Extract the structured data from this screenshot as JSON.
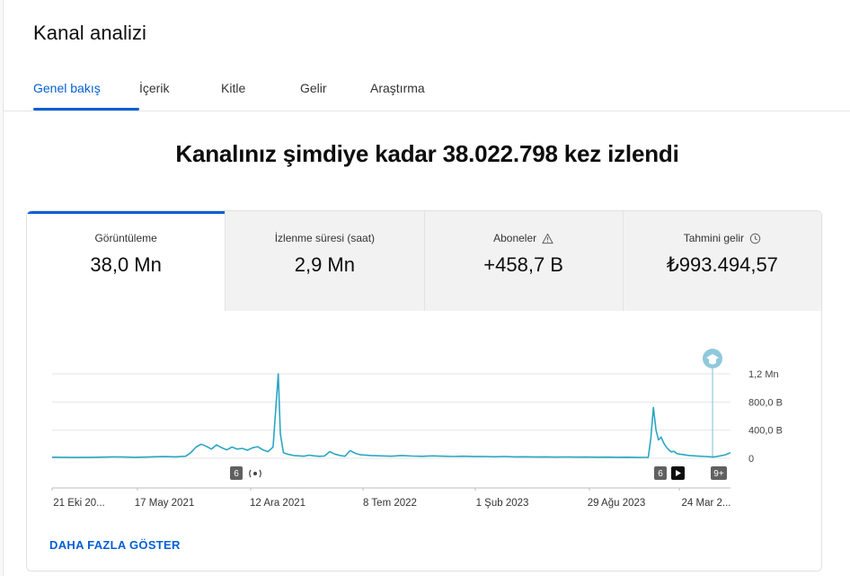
{
  "header": {
    "title": "Kanal analizi",
    "tabs": [
      {
        "label": "Genel bakış",
        "active": true
      },
      {
        "label": "İçerik",
        "active": false
      },
      {
        "label": "Kitle",
        "active": false
      },
      {
        "label": "Gelir",
        "active": false
      },
      {
        "label": "Araştırma",
        "active": false
      }
    ]
  },
  "main": {
    "headline": "Kanalınız şimdiye kadar 38.022.798 kez izlendi",
    "metrics": [
      {
        "label": "Görüntüleme",
        "value": "38,0 Mn",
        "icon": ""
      },
      {
        "label": "İzlenme süresi (saat)",
        "value": "2,9 Mn",
        "icon": ""
      },
      {
        "label": "Aboneler",
        "value": "+458,7 B",
        "icon": "warning-icon"
      },
      {
        "label": "Tahmini gelir",
        "value": "₺993.494,57",
        "icon": "clock-icon"
      }
    ],
    "show_more": "DAHA FAZLA GÖSTER"
  },
  "colors": {
    "accent": "#065fd4",
    "line": "#2aa6c4",
    "marker_bg": "#606060",
    "milestone": "#8fc9dc"
  },
  "chart_data": {
    "type": "line",
    "x_tick_labels": [
      "21 Eki 20...",
      "17 May 2021",
      "12 Ara 2021",
      "8 Tem 2022",
      "1 Şub 2023",
      "29 Ağu 2023",
      "24 Mar 2..."
    ],
    "y_tick_labels": [
      "1,2 Mn",
      "800,0 B",
      "400,0 B",
      "0"
    ],
    "ylim": [
      0,
      1200000
    ],
    "series": [
      {
        "points": [
          [
            0,
            15000
          ],
          [
            4,
            12000
          ],
          [
            8,
            14000
          ],
          [
            10,
            16000
          ],
          [
            12,
            20000
          ],
          [
            14,
            18000
          ],
          [
            16,
            14000
          ],
          [
            18,
            17000
          ],
          [
            20,
            22000
          ],
          [
            22,
            24000
          ],
          [
            24,
            20000
          ],
          [
            26,
            30000
          ],
          [
            27,
            80000
          ],
          [
            28,
            160000
          ],
          [
            29,
            200000
          ],
          [
            30,
            170000
          ],
          [
            31,
            130000
          ],
          [
            32,
            190000
          ],
          [
            33,
            150000
          ],
          [
            34,
            120000
          ],
          [
            35,
            160000
          ],
          [
            36,
            130000
          ],
          [
            37,
            140000
          ],
          [
            38,
            115000
          ],
          [
            39,
            150000
          ],
          [
            40,
            165000
          ],
          [
            41,
            120000
          ],
          [
            42,
            95000
          ],
          [
            43,
            160000
          ],
          [
            44,
            1200000
          ],
          [
            44.4,
            350000
          ],
          [
            45,
            80000
          ],
          [
            46,
            55000
          ],
          [
            47,
            40000
          ],
          [
            48,
            35000
          ],
          [
            49,
            30000
          ],
          [
            50,
            45000
          ],
          [
            51,
            35000
          ],
          [
            52,
            28000
          ],
          [
            53,
            32000
          ],
          [
            54,
            95000
          ],
          [
            55,
            60000
          ],
          [
            56,
            40000
          ],
          [
            57,
            30000
          ],
          [
            58,
            110000
          ],
          [
            59,
            70000
          ],
          [
            60,
            50000
          ],
          [
            62,
            40000
          ],
          [
            64,
            35000
          ],
          [
            66,
            30000
          ],
          [
            68,
            40000
          ],
          [
            70,
            32000
          ],
          [
            72,
            28000
          ],
          [
            74,
            35000
          ],
          [
            76,
            30000
          ],
          [
            78,
            25000
          ],
          [
            80,
            30000
          ],
          [
            82,
            24000
          ],
          [
            84,
            26000
          ],
          [
            86,
            22000
          ],
          [
            88,
            25000
          ],
          [
            90,
            20000
          ],
          [
            92,
            22000
          ],
          [
            94,
            18000
          ],
          [
            96,
            20000
          ],
          [
            98,
            17000
          ],
          [
            100,
            19000
          ],
          [
            102,
            16000
          ],
          [
            104,
            18000
          ],
          [
            106,
            15000
          ],
          [
            108,
            16000
          ],
          [
            110,
            14000
          ],
          [
            112,
            15000
          ],
          [
            114,
            12000
          ],
          [
            115,
            13000
          ],
          [
            116,
            14000
          ],
          [
            116.5,
            280000
          ],
          [
            117,
            720000
          ],
          [
            117.5,
            400000
          ],
          [
            118,
            260000
          ],
          [
            118.5,
            300000
          ],
          [
            119,
            220000
          ],
          [
            119.5,
            160000
          ],
          [
            120,
            120000
          ],
          [
            120.5,
            90000
          ],
          [
            121,
            100000
          ],
          [
            121.5,
            70000
          ],
          [
            122,
            60000
          ],
          [
            123,
            50000
          ],
          [
            124,
            40000
          ],
          [
            125,
            35000
          ],
          [
            126,
            30000
          ],
          [
            127,
            25000
          ],
          [
            128,
            22000
          ],
          [
            129,
            20000
          ],
          [
            130,
            35000
          ],
          [
            131,
            50000
          ],
          [
            132,
            80000
          ]
        ]
      }
    ],
    "markers": [
      {
        "label": "6",
        "icon": "live-broadcast-icon",
        "x_index": 44
      },
      {
        "label": "6",
        "icon": "play-icon",
        "x_index": 118
      },
      {
        "label": "9+",
        "icon": "",
        "x_index": 131
      }
    ],
    "milestone": {
      "icon": "graduation-cap-icon",
      "x_index": 131
    },
    "grid": true,
    "legend": "none"
  }
}
